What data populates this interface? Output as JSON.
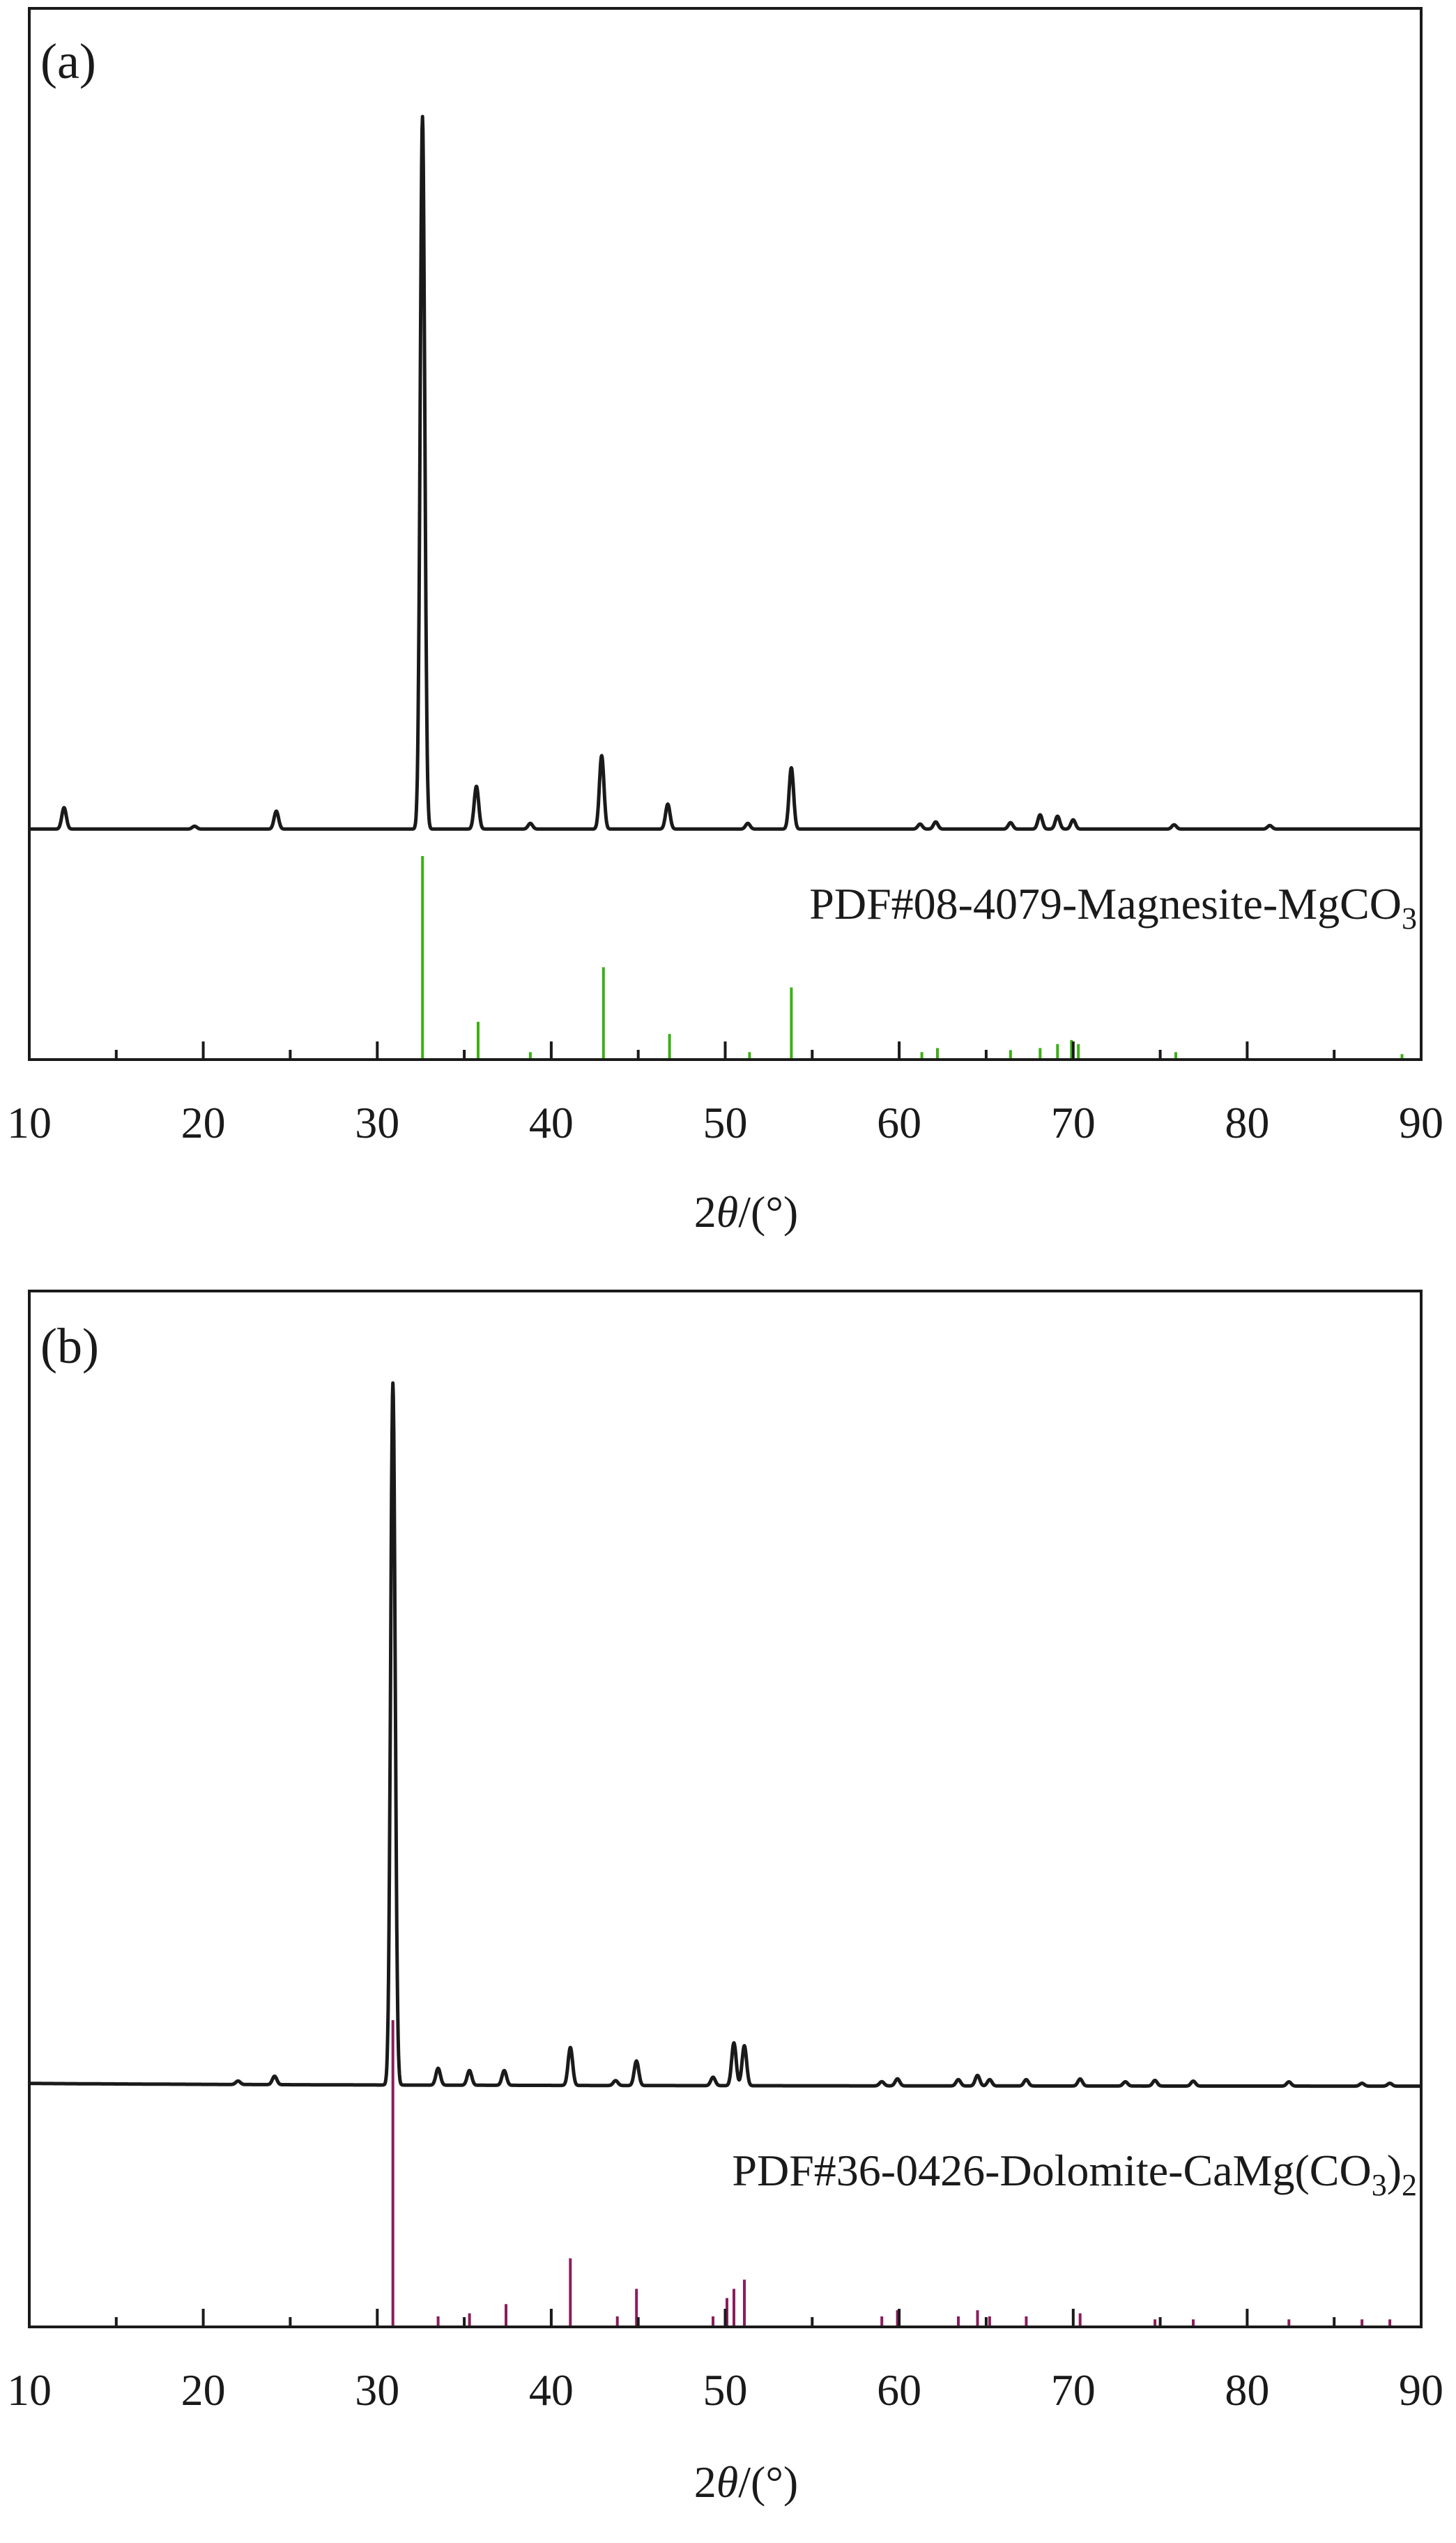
{
  "chart_data": [
    {
      "panel_label": "(a)",
      "type": "line",
      "xlabel": "2θ/(°)",
      "xlabel_prefix": "2",
      "xlabel_theta": "θ",
      "xlabel_suffix": "/(°)",
      "xlim": [
        10,
        90
      ],
      "xticks": [
        "10",
        "20",
        "30",
        "40",
        "50",
        "60",
        "70",
        "80",
        "90"
      ],
      "ylabel": "",
      "grid": false,
      "measured": {
        "baseline": 0.032,
        "peaks": [
          [
            12.0,
            0.03
          ],
          [
            19.5,
            0.004
          ],
          [
            24.2,
            0.025
          ],
          [
            32.6,
            1.0
          ],
          [
            35.7,
            0.06
          ],
          [
            38.8,
            0.008
          ],
          [
            42.9,
            0.103
          ],
          [
            46.7,
            0.035
          ],
          [
            51.3,
            0.008
          ],
          [
            53.8,
            0.086
          ],
          [
            61.2,
            0.007
          ],
          [
            62.1,
            0.01
          ],
          [
            66.4,
            0.009
          ],
          [
            68.1,
            0.02
          ],
          [
            69.1,
            0.018
          ],
          [
            70.0,
            0.013
          ],
          [
            75.8,
            0.006
          ],
          [
            81.3,
            0.005
          ]
        ]
      },
      "reference": {
        "name": "PDF#08-4079-Magnesite-MgCO",
        "name_sub": "3",
        "name_tail": "",
        "color": "#3cb016",
        "sticks": [
          [
            32.6,
            1.0
          ],
          [
            35.8,
            0.18
          ],
          [
            38.8,
            0.03
          ],
          [
            43.0,
            0.45
          ],
          [
            46.8,
            0.12
          ],
          [
            51.4,
            0.03
          ],
          [
            53.8,
            0.35
          ],
          [
            61.3,
            0.03
          ],
          [
            62.2,
            0.05
          ],
          [
            66.4,
            0.04
          ],
          [
            68.1,
            0.05
          ],
          [
            69.1,
            0.07
          ],
          [
            69.9,
            0.09
          ],
          [
            70.3,
            0.07
          ],
          [
            75.9,
            0.03
          ],
          [
            88.9,
            0.02
          ]
        ]
      }
    },
    {
      "panel_label": "(b)",
      "type": "line",
      "xlabel": "2θ/(°)",
      "xlabel_prefix": "2",
      "xlabel_theta": "θ",
      "xlabel_suffix": "/(°)",
      "xlim": [
        10,
        90
      ],
      "xticks": [
        "10",
        "20",
        "30",
        "40",
        "50",
        "60",
        "70",
        "80",
        "90"
      ],
      "ylabel": "",
      "grid": false,
      "measured": {
        "baseline": 0.034,
        "peaks": [
          [
            22.0,
            0.005
          ],
          [
            24.1,
            0.012
          ],
          [
            30.9,
            1.0
          ],
          [
            33.5,
            0.024
          ],
          [
            35.3,
            0.021
          ],
          [
            37.3,
            0.021
          ],
          [
            41.1,
            0.054
          ],
          [
            43.7,
            0.007
          ],
          [
            44.9,
            0.035
          ],
          [
            49.3,
            0.012
          ],
          [
            50.5,
            0.061
          ],
          [
            51.1,
            0.057
          ],
          [
            59.0,
            0.006
          ],
          [
            59.9,
            0.01
          ],
          [
            63.4,
            0.009
          ],
          [
            64.5,
            0.015
          ],
          [
            65.2,
            0.009
          ],
          [
            67.3,
            0.009
          ],
          [
            70.4,
            0.01
          ],
          [
            73.0,
            0.006
          ],
          [
            74.7,
            0.008
          ],
          [
            76.9,
            0.007
          ],
          [
            82.4,
            0.006
          ],
          [
            86.6,
            0.004
          ],
          [
            88.2,
            0.004
          ]
        ]
      },
      "reference": {
        "name": "PDF#36-0426-Dolomite-CaMg(CO",
        "name_sub": "3",
        "name_tail": ")2",
        "color": "#8b1d5c",
        "sticks": [
          [
            30.9,
            1.0
          ],
          [
            33.5,
            0.03
          ],
          [
            35.3,
            0.04
          ],
          [
            37.4,
            0.07
          ],
          [
            41.1,
            0.22
          ],
          [
            43.8,
            0.03
          ],
          [
            44.9,
            0.12
          ],
          [
            49.3,
            0.03
          ],
          [
            50.1,
            0.09
          ],
          [
            50.5,
            0.12
          ],
          [
            51.1,
            0.15
          ],
          [
            59.0,
            0.03
          ],
          [
            59.9,
            0.05
          ],
          [
            63.4,
            0.03
          ],
          [
            64.5,
            0.05
          ],
          [
            65.2,
            0.03
          ],
          [
            67.3,
            0.03
          ],
          [
            70.4,
            0.04
          ],
          [
            74.7,
            0.02
          ],
          [
            76.9,
            0.02
          ],
          [
            82.4,
            0.02
          ],
          [
            86.6,
            0.02
          ],
          [
            88.2,
            0.02
          ]
        ]
      }
    }
  ]
}
